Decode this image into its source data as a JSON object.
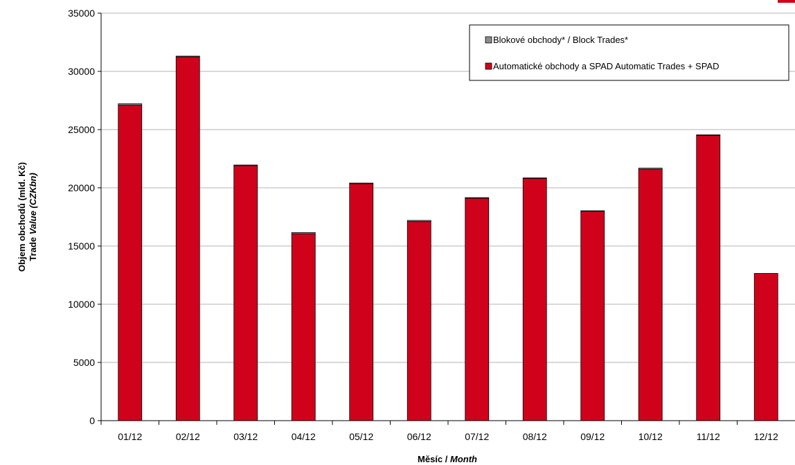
{
  "chart_data": {
    "type": "bar",
    "stacked": true,
    "categories": [
      "01/12",
      "02/12",
      "03/12",
      "04/12",
      "05/12",
      "06/12",
      "07/12",
      "08/12",
      "09/12",
      "10/12",
      "11/12",
      "12/12"
    ],
    "series": [
      {
        "name": "Automatické obchody a SPAD Automatic Trades  + SPAD",
        "color": "#d0021b",
        "values": [
          27100,
          31250,
          21900,
          16050,
          20350,
          17100,
          19100,
          20800,
          18000,
          21600,
          24500,
          12650
        ]
      },
      {
        "name": "Blokové obchody* / Block Trades*",
        "color": "#8c8c8c",
        "values": [
          120,
          60,
          60,
          110,
          60,
          100,
          60,
          50,
          30,
          90,
          50,
          0
        ]
      }
    ],
    "ylabel_line1": "Objem obchodů (mld. Kč)",
    "ylabel_line2_a": "Trade ",
    "ylabel_line2_b": "Value (CZKbn)",
    "xlabel_a": "Měsíc / ",
    "xlabel_b": "Month",
    "ylim": [
      0,
      35000
    ],
    "yticks": [
      0,
      5000,
      10000,
      15000,
      20000,
      25000,
      30000,
      35000
    ],
    "grid": true,
    "legend_position": "top-right"
  }
}
